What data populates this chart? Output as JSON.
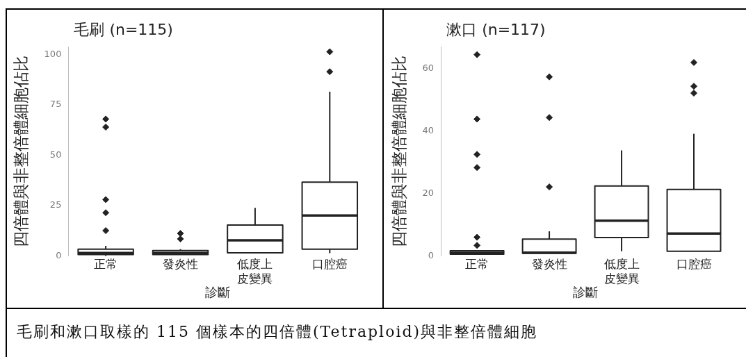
{
  "chart_data": [
    {
      "type": "box",
      "title": "毛刷 (n=115)",
      "xlabel": "診斷",
      "ylabel": "四倍體與非整倍體細胞佔比",
      "categories": [
        "正常",
        "發炎性",
        "低度上皮變異",
        "口腔癌"
      ],
      "ylim": [
        0,
        104
      ],
      "yticks": [
        0,
        25,
        50,
        75,
        100
      ],
      "grid": false,
      "legend": false,
      "marker": "diamond",
      "series": [
        {
          "color": "#222222",
          "boxes": [
            {
              "low": 0,
              "q1": 0.7,
              "median": 1.5,
              "q3": 3.4,
              "high": 5,
              "outliers": [
                12.6,
                21.5,
                28,
                64,
                68
              ]
            },
            {
              "low": 0.7,
              "q1": 0.7,
              "median": 1.5,
              "q3": 2.7,
              "high": 3.4,
              "outliers": [
                8.5,
                11.2
              ]
            },
            {
              "low": 1.6,
              "q1": 1.6,
              "median": 7.8,
              "q3": 15.4,
              "high": 23.9
            },
            {
              "low": 1.4,
              "q1": 3.4,
              "median": 20.1,
              "q3": 36.7,
              "high": 81.6,
              "outliers": [
                91.5,
                101.4
              ]
            }
          ]
        }
      ]
    },
    {
      "type": "box",
      "title": "漱口 (n=117)",
      "xlabel": "診斷",
      "ylabel": "四倍體與非整倍體細胞佔比",
      "categories": [
        "正常",
        "發炎性",
        "低度上皮變異",
        "口腔癌"
      ],
      "ylim": [
        0,
        67
      ],
      "yticks": [
        0,
        20,
        40,
        60
      ],
      "grid": false,
      "legend": false,
      "marker": "diamond",
      "series": [
        {
          "color": "#222222",
          "boxes": [
            {
              "low": 0.6,
              "q1": 0.6,
              "median": 1,
              "q3": 1.7,
              "high": 1.7,
              "outliers": [
                3.4,
                6,
                28.3,
                32.5,
                43.8,
                64.4
              ]
            },
            {
              "low": 0.85,
              "q1": 0.85,
              "median": 1.1,
              "q3": 5.4,
              "high": 7.9,
              "outliers": [
                22.1,
                44.3,
                57.3
              ]
            },
            {
              "low": 1.5,
              "q1": 5.9,
              "median": 11.3,
              "q3": 22.4,
              "high": 33.8
            },
            {
              "low": 1.5,
              "q1": 1.5,
              "median": 7.2,
              "q3": 21.3,
              "high": 39.1,
              "outliers": [
                52.1,
                54.3,
                61.9
              ]
            }
          ]
        }
      ]
    },
    {
      "type": "other",
      "annotations": [
        "毛刷和漱口取樣的 115 個樣本的四倍體(Tetraploid)與非整倍體細胞"
      ]
    }
  ]
}
